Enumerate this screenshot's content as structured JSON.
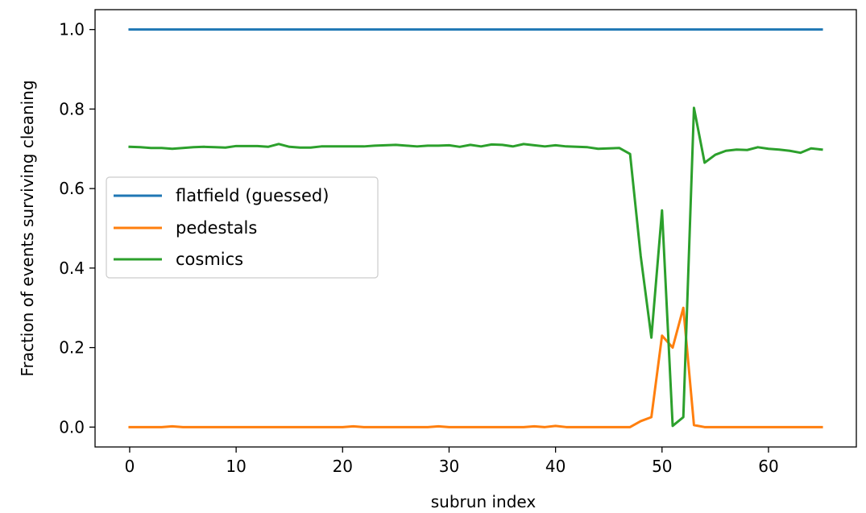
{
  "chart_data": {
    "type": "line",
    "title": "",
    "xlabel": "subrun index",
    "ylabel": "Fraction of events surviving cleaning",
    "xlim": [
      -3.25,
      68.25
    ],
    "ylim": [
      -0.05,
      1.05
    ],
    "xticks": [
      0,
      10,
      20,
      30,
      40,
      50,
      60
    ],
    "yticks": [
      0.0,
      0.2,
      0.4,
      0.6,
      0.8,
      1.0
    ],
    "xtick_labels": [
      "0",
      "10",
      "20",
      "30",
      "40",
      "50",
      "60"
    ],
    "ytick_labels": [
      "0.0",
      "0.2",
      "0.4",
      "0.6",
      "0.8",
      "1.0"
    ],
    "grid": false,
    "legend_position": "center-left",
    "x": [
      0,
      1,
      2,
      3,
      4,
      5,
      6,
      7,
      8,
      9,
      10,
      11,
      12,
      13,
      14,
      15,
      16,
      17,
      18,
      19,
      20,
      21,
      22,
      23,
      24,
      25,
      26,
      27,
      28,
      29,
      30,
      31,
      32,
      33,
      34,
      35,
      36,
      37,
      38,
      39,
      40,
      41,
      42,
      43,
      44,
      45,
      46,
      47,
      48,
      49,
      50,
      51,
      52,
      53,
      54,
      55,
      56,
      57,
      58,
      59,
      60,
      61,
      62,
      63,
      64,
      65
    ],
    "series": [
      {
        "name": "flatfield (guessed)",
        "color": "#1f77b4",
        "values": [
          1,
          1,
          1,
          1,
          1,
          1,
          1,
          1,
          1,
          1,
          1,
          1,
          1,
          1,
          1,
          1,
          1,
          1,
          1,
          1,
          1,
          1,
          1,
          1,
          1,
          1,
          1,
          1,
          1,
          1,
          1,
          1,
          1,
          1,
          1,
          1,
          1,
          1,
          1,
          1,
          1,
          1,
          1,
          1,
          1,
          1,
          1,
          1,
          1,
          1,
          1,
          1,
          1,
          1,
          1,
          1,
          1,
          1,
          1,
          1,
          1,
          1,
          1,
          1,
          1,
          1
        ]
      },
      {
        "name": "pedestals",
        "color": "#ff7f0e",
        "values": [
          0,
          0,
          0,
          0,
          0.002,
          0,
          0,
          0,
          0,
          0,
          0,
          0,
          0,
          0,
          0,
          0,
          0,
          0,
          0,
          0,
          0,
          0.002,
          0,
          0,
          0,
          0,
          0,
          0,
          0,
          0.002,
          0,
          0,
          0,
          0,
          0,
          0,
          0,
          0,
          0.002,
          0,
          0.003,
          0,
          0,
          0,
          0,
          0,
          0,
          0,
          0.015,
          0.025,
          0.23,
          0.2,
          0.3,
          0.005,
          0,
          0,
          0,
          0,
          0,
          0,
          0,
          0,
          0,
          0,
          0,
          0
        ]
      },
      {
        "name": "cosmics",
        "color": "#2ca02c",
        "values": [
          0.705,
          0.704,
          0.702,
          0.702,
          0.7,
          0.702,
          0.704,
          0.705,
          0.704,
          0.703,
          0.707,
          0.707,
          0.707,
          0.705,
          0.712,
          0.705,
          0.703,
          0.703,
          0.706,
          0.706,
          0.706,
          0.706,
          0.706,
          0.708,
          0.709,
          0.71,
          0.708,
          0.706,
          0.708,
          0.708,
          0.709,
          0.705,
          0.71,
          0.706,
          0.711,
          0.71,
          0.706,
          0.712,
          0.709,
          0.706,
          0.709,
          0.706,
          0.705,
          0.704,
          0.7,
          0.701,
          0.702,
          0.687,
          0.43,
          0.225,
          0.545,
          0.003,
          0.025,
          0.803,
          0.665,
          0.685,
          0.695,
          0.698,
          0.697,
          0.704,
          0.7,
          0.698,
          0.695,
          0.69,
          0.701,
          0.698
        ]
      }
    ]
  }
}
